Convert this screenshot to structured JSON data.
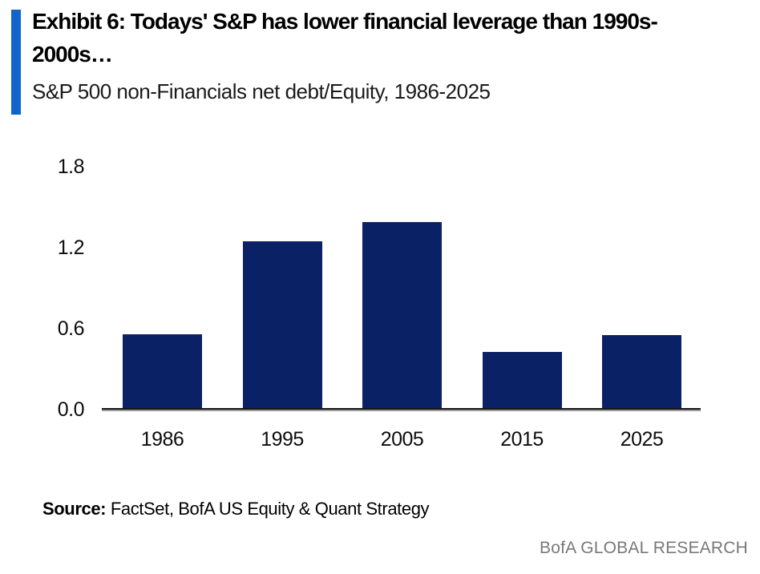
{
  "header": {
    "title_lines": [
      "Exhibit 6: Todays' S&P has lower financial leverage than 1990s-",
      "2000s…"
    ],
    "subtitle": "S&P 500 non-Financials net debt/Equity, 1986-2025",
    "accent_color": "#1165C8"
  },
  "chart_data": {
    "type": "bar",
    "title": "Exhibit 6: Todays' S&P has lower financial leverage than 1990s-2000s…",
    "subtitle": "S&P 500 non-Financials net debt/Equity, 1986-2025",
    "categories": [
      "1986",
      "1995",
      "2005",
      "2015",
      "2025"
    ],
    "values": [
      0.56,
      1.25,
      1.39,
      0.43,
      0.55
    ],
    "xlabel": "",
    "ylabel": "",
    "ylim": [
      0,
      1.8
    ],
    "yticks": [
      1.8,
      1.2,
      0.6,
      0.0
    ],
    "grid": false,
    "legend_position": "none",
    "bar_color": "#0A2166",
    "axis_line_color": "#161616"
  },
  "footer": {
    "source_label": "Source:",
    "source_text": " FactSet, BofA US Equity & Quant Strategy",
    "brand": "BofA GLOBAL RESEARCH"
  }
}
